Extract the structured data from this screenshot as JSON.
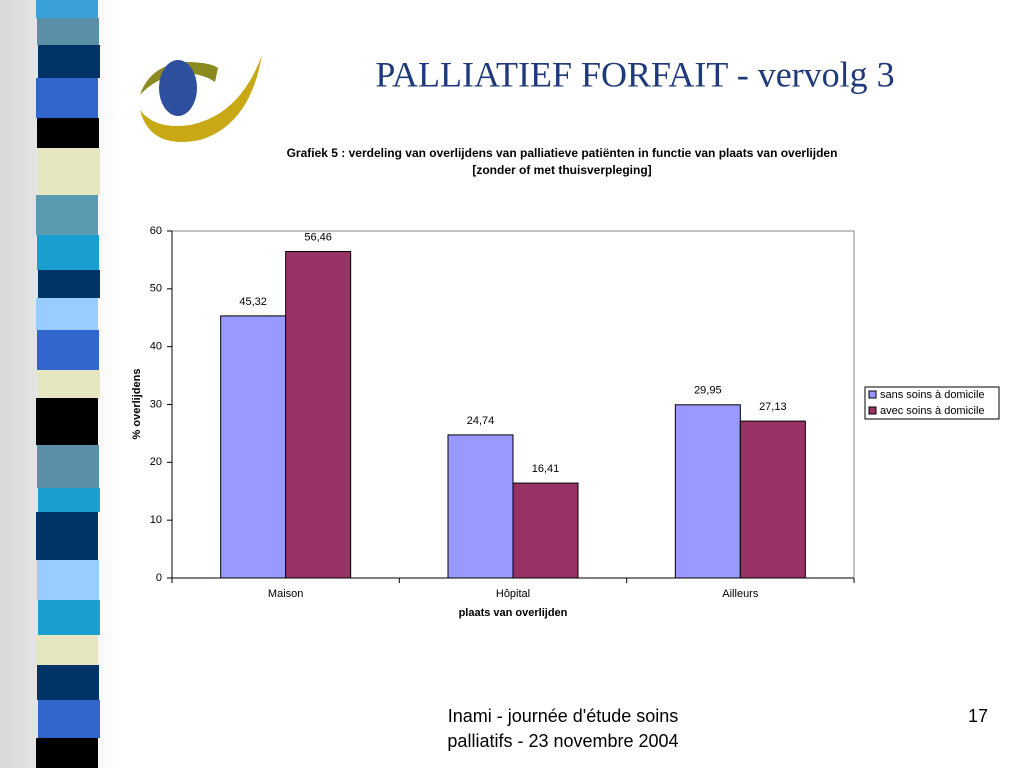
{
  "slide": {
    "title": "PALLIATIEF FORFAIT  - vervolg 3",
    "footer": [
      "Inami - journée d'étude soins",
      "palliatifs - 23 novembre 2004"
    ],
    "page_number": "17"
  },
  "chart_data": {
    "type": "bar",
    "title": "Grafiek 5 : verdeling van overlijdens van palliatieve patiënten in functie van plaats van overlijden",
    "subtitle": "[zonder of met thuisverpleging]",
    "x_label": "plaats van overlijden",
    "y_label": "% overlijdens",
    "categories": [
      "Maison",
      "Hôpital",
      "Ailleurs"
    ],
    "series": [
      {
        "name": "sans soins à domicile",
        "color": "#9999ff",
        "values": [
          45.32,
          24.74,
          29.95
        ],
        "value_labels": [
          "45,32",
          "24,74",
          "29,95"
        ]
      },
      {
        "name": "avec soins à domicile",
        "color": "#993366",
        "values": [
          56.46,
          16.41,
          27.13
        ],
        "value_labels": [
          "56,46",
          "16,41",
          "27,13"
        ]
      }
    ],
    "ylim": [
      0,
      60
    ],
    "yticks": [
      0,
      10,
      20,
      30,
      40,
      50,
      60
    ],
    "grid": false,
    "legend": "right"
  }
}
